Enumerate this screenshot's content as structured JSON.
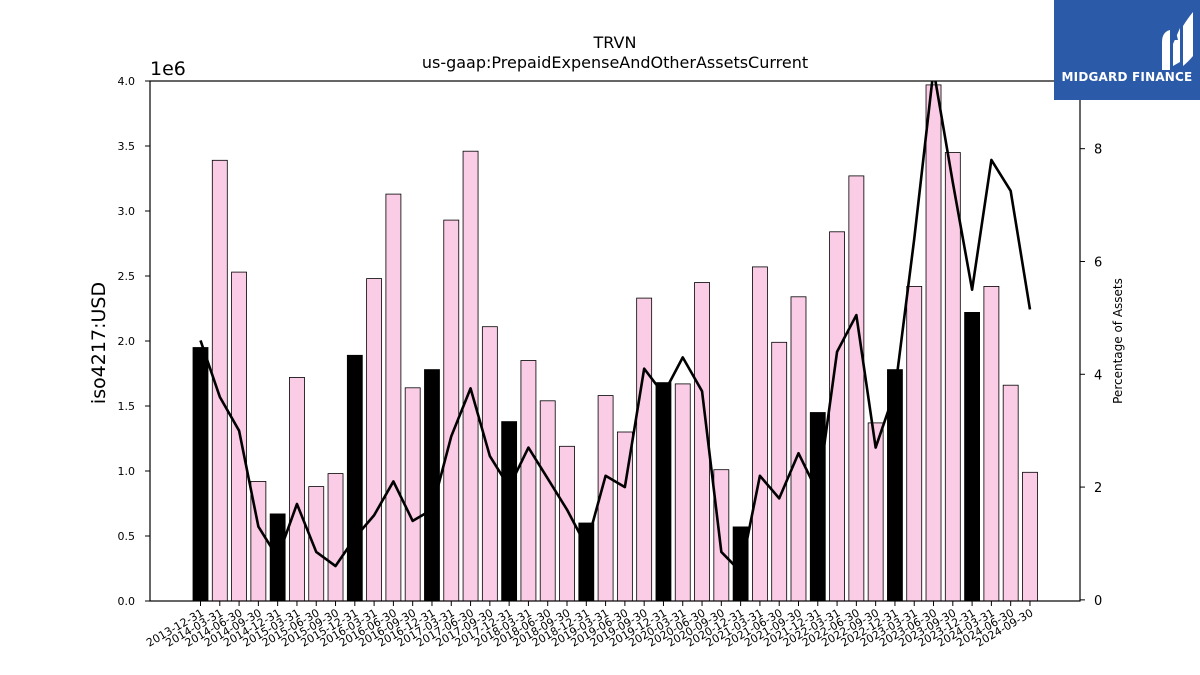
{
  "brand": {
    "name": "MIDGARD FINANCE",
    "background": "#2b5aa8"
  },
  "chart_data": {
    "type": "bar",
    "title": "TRVN",
    "subtitle": "us-gaap:PrepaidExpenseAndOtherAssetsCurrent",
    "ylabel": "iso4217:USD",
    "y_scale_label": "1e6",
    "y2label": "Percentage of Assets",
    "ylim": [
      0,
      4000000
    ],
    "yticks": [
      "0.0",
      "0.5",
      "1.0",
      "1.5",
      "2.0",
      "2.5",
      "3.0",
      "3.5",
      "4.0"
    ],
    "y2lim": [
      -0.02,
      9.2
    ],
    "y2ticks": [
      "0",
      "2",
      "4",
      "6",
      "8"
    ],
    "grid": false,
    "colors": {
      "quarter_bar": "#fbcce6",
      "year_end_bar": "#000000",
      "line": "#000000"
    },
    "categories": [
      "2013-12-31",
      "2014-03-31",
      "2014-06-30",
      "2014-09-30",
      "2014-12-31",
      "2015-03-31",
      "2015-06-30",
      "2015-09-30",
      "2015-12-31",
      "2016-03-31",
      "2016-06-30",
      "2016-09-30",
      "2016-12-31",
      "2017-03-31",
      "2017-06-30",
      "2017-09-30",
      "2017-12-31",
      "2018-03-31",
      "2018-06-30",
      "2018-09-30",
      "2018-12-31",
      "2019-03-31",
      "2019-06-30",
      "2019-09-30",
      "2019-12-31",
      "2020-03-31",
      "2020-06-30",
      "2020-09-30",
      "2020-12-31",
      "2021-03-31",
      "2021-06-30",
      "2021-09-30",
      "2021-12-31",
      "2022-03-31",
      "2022-06-30",
      "2022-09-30",
      "2022-12-31",
      "2023-03-31",
      "2023-06-30",
      "2023-09-30",
      "2023-12-31",
      "2024-03-31",
      "2024-06-30",
      "2024-09-30"
    ],
    "series": [
      {
        "values": [
          1950000,
          3390000,
          2530000,
          920000,
          670000,
          1720000,
          880000,
          980000,
          1890000,
          2480000,
          3130000,
          1640000,
          1780000,
          2930000,
          3460000,
          2110000,
          1380000,
          1850000,
          1540000,
          1190000,
          600000,
          1580000,
          1300000,
          2330000,
          1680000,
          1670000,
          2450000,
          1010000,
          570000,
          2570000,
          1990000,
          2340000,
          1450000,
          2840000,
          3270000,
          1370000,
          1780000,
          2420000,
          3970000,
          3450000,
          2220000,
          2420000,
          1660000,
          990000
        ]
      },
      {
        "axis": "right",
        "values": [
          4.6,
          3.6,
          3.0,
          1.3,
          0.75,
          1.7,
          0.85,
          0.6,
          1.1,
          1.5,
          2.1,
          1.4,
          1.6,
          2.9,
          3.75,
          2.55,
          2.0,
          2.7,
          2.15,
          1.6,
          0.95,
          2.2,
          2.0,
          4.1,
          3.65,
          4.3,
          3.7,
          0.85,
          0.5,
          2.2,
          1.8,
          2.6,
          1.9,
          4.4,
          5.05,
          2.7,
          3.7,
          6.4,
          9.4,
          7.4,
          5.5,
          7.8,
          7.25,
          5.15
        ]
      }
    ]
  }
}
